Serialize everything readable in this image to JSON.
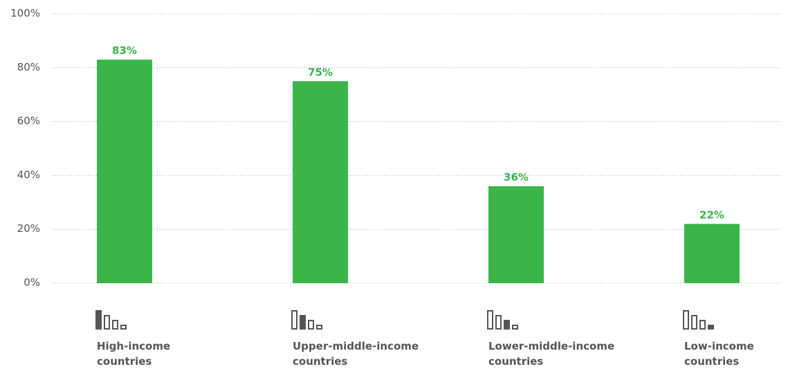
{
  "colors": {
    "bar": "#3bb54a",
    "text": "#555555",
    "grid": "#9a9a9a",
    "icon": "#555555"
  },
  "chart_data": {
    "type": "bar",
    "categories": [
      {
        "line1": "High-income",
        "line2": "countries",
        "icon": "bar-steps-icon-level-1"
      },
      {
        "line1": "Upper-middle-income",
        "line2": "countries",
        "icon": "bar-steps-icon-level-2"
      },
      {
        "line1": "Lower-middle-income",
        "line2": "countries",
        "icon": "bar-steps-icon-level-3"
      },
      {
        "line1": "Low-income",
        "line2": "countries",
        "icon": "bar-steps-icon-level-4"
      }
    ],
    "values": [
      83,
      75,
      36,
      22
    ],
    "data_labels": [
      "83%",
      "75%",
      "36%",
      "22%"
    ],
    "yticks": [
      0,
      20,
      40,
      60,
      80,
      100
    ],
    "ytick_labels": [
      "0%",
      "20%",
      "40%",
      "60%",
      "80%",
      "100%"
    ],
    "ylim": [
      0,
      100
    ],
    "grid": "horizontal-dotted",
    "legend": "none"
  }
}
